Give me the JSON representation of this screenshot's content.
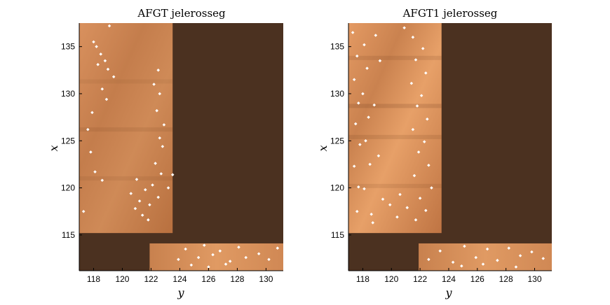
{
  "chart_data": [
    {
      "type": "heatmap",
      "title": "AFGT jelerosseg",
      "xlabel": "y",
      "ylabel": "x",
      "xlim": [
        117,
        131.2
      ],
      "ylim": [
        111.2,
        137.5
      ],
      "xticks": [
        118,
        120,
        122,
        124,
        126,
        128,
        130
      ],
      "yticks": [
        115,
        120,
        125,
        130,
        135
      ],
      "regions": [
        {
          "kind": "dark",
          "y": [
            117,
            131.2
          ],
          "x": [
            111.2,
            137.5
          ]
        },
        {
          "kind": "field",
          "y": [
            117,
            123.5
          ],
          "x": [
            115.2,
            137.5
          ]
        },
        {
          "kind": "field",
          "y": [
            121.9,
            131.2
          ],
          "x": [
            111.2,
            114.1
          ]
        }
      ],
      "scatter_points": [
        [
          118.0,
          135.5
        ],
        [
          118.2,
          135.0
        ],
        [
          118.5,
          134.2
        ],
        [
          118.8,
          133.5
        ],
        [
          119.0,
          132.6
        ],
        [
          119.4,
          131.8
        ],
        [
          118.6,
          130.5
        ],
        [
          118.9,
          129.4
        ],
        [
          117.9,
          128.0
        ],
        [
          117.6,
          126.2
        ],
        [
          117.8,
          123.8
        ],
        [
          118.1,
          121.7
        ],
        [
          118.6,
          120.8
        ],
        [
          117.3,
          117.5
        ],
        [
          119.1,
          137.2
        ],
        [
          118.3,
          133.1
        ],
        [
          122.5,
          132.5
        ],
        [
          122.2,
          131.0
        ],
        [
          122.6,
          130.0
        ],
        [
          122.4,
          128.2
        ],
        [
          122.9,
          126.7
        ],
        [
          122.6,
          125.3
        ],
        [
          122.8,
          124.4
        ],
        [
          122.3,
          122.6
        ],
        [
          122.7,
          121.5
        ],
        [
          122.1,
          120.3
        ],
        [
          122.5,
          119.0
        ],
        [
          121.6,
          119.8
        ],
        [
          121.2,
          118.6
        ],
        [
          120.9,
          117.8
        ],
        [
          121.4,
          117.1
        ],
        [
          121.8,
          116.6
        ],
        [
          120.6,
          119.4
        ],
        [
          121.0,
          120.9
        ],
        [
          123.5,
          121.4
        ],
        [
          123.2,
          120.0
        ],
        [
          121.9,
          118.2
        ],
        [
          123.9,
          112.4
        ],
        [
          124.4,
          113.5
        ],
        [
          125.3,
          112.6
        ],
        [
          125.7,
          113.9
        ],
        [
          126.3,
          112.9
        ],
        [
          126.8,
          113.3
        ],
        [
          127.5,
          112.2
        ],
        [
          128.1,
          113.7
        ],
        [
          128.6,
          112.6
        ],
        [
          129.5,
          113.0
        ],
        [
          130.2,
          112.4
        ],
        [
          130.8,
          113.6
        ],
        [
          124.8,
          111.8
        ],
        [
          126.0,
          111.6
        ],
        [
          127.2,
          111.9
        ]
      ]
    },
    {
      "type": "heatmap",
      "title": "AFGT1 jelerosseg",
      "xlabel": "y",
      "ylabel": "x",
      "xlim": [
        117,
        131.2
      ],
      "ylim": [
        111.2,
        137.5
      ],
      "xticks": [
        118,
        120,
        122,
        124,
        126,
        128,
        130
      ],
      "yticks": [
        115,
        120,
        125,
        130,
        135
      ],
      "regions": [
        {
          "kind": "dark",
          "y": [
            117,
            131.2
          ],
          "x": [
            111.2,
            137.5
          ]
        },
        {
          "kind": "field",
          "y": [
            117,
            123.5
          ],
          "x": [
            115.2,
            137.5
          ]
        },
        {
          "kind": "field",
          "y": [
            121.9,
            131.2
          ],
          "x": [
            111.2,
            114.1
          ]
        }
      ],
      "scatter_points": [
        [
          117.3,
          136.5
        ],
        [
          117.6,
          134.0
        ],
        [
          117.4,
          131.5
        ],
        [
          117.7,
          129.0
        ],
        [
          117.5,
          126.8
        ],
        [
          117.8,
          124.6
        ],
        [
          117.4,
          122.3
        ],
        [
          117.7,
          120.1
        ],
        [
          117.6,
          117.5
        ],
        [
          118.1,
          135.2
        ],
        [
          118.3,
          132.7
        ],
        [
          118.0,
          130.0
        ],
        [
          118.4,
          127.5
        ],
        [
          118.2,
          125.0
        ],
        [
          118.5,
          122.5
        ],
        [
          118.1,
          119.9
        ],
        [
          118.6,
          117.2
        ],
        [
          118.9,
          136.2
        ],
        [
          119.2,
          133.5
        ],
        [
          118.8,
          128.8
        ],
        [
          119.1,
          123.4
        ],
        [
          119.4,
          118.8
        ],
        [
          118.7,
          116.3
        ],
        [
          121.5,
          136.0
        ],
        [
          121.7,
          133.6
        ],
        [
          121.4,
          131.1
        ],
        [
          121.8,
          128.7
        ],
        [
          121.5,
          126.2
        ],
        [
          121.9,
          123.8
        ],
        [
          121.6,
          121.3
        ],
        [
          122.0,
          118.9
        ],
        [
          121.7,
          116.6
        ],
        [
          122.2,
          134.8
        ],
        [
          122.4,
          132.2
        ],
        [
          122.1,
          129.8
        ],
        [
          122.5,
          127.3
        ],
        [
          122.3,
          124.9
        ],
        [
          122.6,
          122.4
        ],
        [
          122.8,
          120.0
        ],
        [
          122.4,
          117.6
        ],
        [
          120.9,
          137.0
        ],
        [
          120.6,
          119.3
        ],
        [
          121.1,
          117.9
        ],
        [
          120.4,
          116.9
        ],
        [
          119.9,
          118.2
        ],
        [
          122.6,
          112.4
        ],
        [
          123.4,
          113.3
        ],
        [
          124.3,
          112.1
        ],
        [
          125.1,
          113.8
        ],
        [
          125.9,
          112.6
        ],
        [
          126.7,
          113.5
        ],
        [
          127.4,
          112.3
        ],
        [
          128.2,
          113.6
        ],
        [
          129.0,
          112.8
        ],
        [
          129.8,
          113.2
        ],
        [
          130.6,
          112.5
        ],
        [
          124.9,
          111.7
        ],
        [
          126.4,
          111.9
        ],
        [
          128.7,
          111.6
        ]
      ]
    }
  ]
}
